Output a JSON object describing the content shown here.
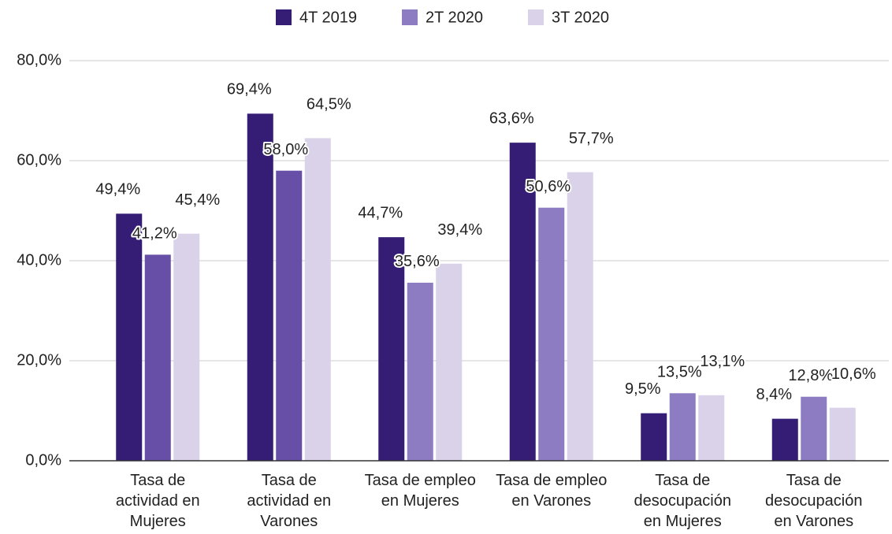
{
  "chart_data": {
    "type": "bar",
    "categories": [
      "Tasa de actividad en Mujeres",
      "Tasa de actividad en Varones",
      "Tasa de empleo en Mujeres",
      "Tasa de empleo en Varones",
      "Tasa de desocupación en Mujeres",
      "Tasa de desocupación en Varones"
    ],
    "series": [
      {
        "name": "4T 2019",
        "color": "#351c75",
        "values": [
          49.4,
          69.4,
          44.7,
          63.6,
          9.5,
          8.4
        ],
        "value_labels": [
          "49,4%",
          "69,4%",
          "44,7%",
          "63,6%",
          "9,5%",
          "8,4%"
        ]
      },
      {
        "name": "2T 2020",
        "color": "#8e7cc3",
        "colors": [
          "#674ea7",
          "#674ea7",
          "#8e7cc3",
          "#8e7cc3",
          "#8e7cc3",
          "#8e7cc3"
        ],
        "values": [
          41.2,
          58.0,
          35.6,
          50.6,
          13.5,
          12.8
        ],
        "value_labels": [
          "41,2%",
          "58,0%",
          "35,6%",
          "50,6%",
          "13,5%",
          "12,8%"
        ]
      },
      {
        "name": "3T 2020",
        "color": "#d9d2e9",
        "values": [
          45.4,
          64.5,
          39.4,
          57.7,
          13.1,
          10.6
        ],
        "value_labels": [
          "45,4%",
          "64,5%",
          "39,4%",
          "57,7%",
          "13,1%",
          "10,6%"
        ]
      }
    ],
    "ylim": [
      0,
      80
    ],
    "yticks": [
      {
        "value": 0,
        "label": "0,0%"
      },
      {
        "value": 20,
        "label": "20,0%"
      },
      {
        "value": 40,
        "label": "40,0%"
      },
      {
        "value": 60,
        "label": "60,0%"
      },
      {
        "value": 80,
        "label": "80,0%"
      }
    ],
    "grid": true,
    "legend": "top"
  }
}
